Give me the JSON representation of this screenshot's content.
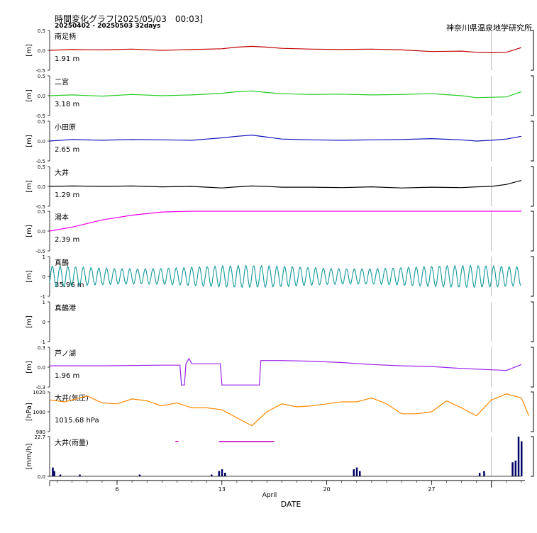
{
  "header": {
    "title": "時間変化グラフ[2025/05/03　00:03]",
    "subtitle": "20250402 - 20250503 32days",
    "organization": "神奈川県温泉地学研究所"
  },
  "colors": {
    "odawara_minami": "#c00000",
    "ninomiya": "#22cc22",
    "odawara": "#1010c0",
    "oi": "#000000",
    "yumoto": "#ee00ee",
    "manazuru": "#119999",
    "ashinoko": "#9922ee",
    "pressure": "#ff8800",
    "rain": "#000066",
    "rain_flag": "#cc33cc"
  },
  "chart_data": {
    "type": "line",
    "x_axis": {
      "label": "DATE",
      "month_label": "April",
      "ticks": [
        "6",
        "13",
        "20",
        "27"
      ],
      "tick_days": [
        6,
        13,
        20,
        27
      ],
      "range": [
        1.5,
        33.0
      ],
      "marker_day": 31.0
    },
    "panels": [
      {
        "name": "南足柄",
        "unit": "[m]",
        "value_label": "1.91 m",
        "ylim": [
          -0.5,
          0.5
        ],
        "ytick_labels": [
          "0.5",
          "0.0",
          "-0.5"
        ],
        "color_key": "odawara_minami",
        "kind": "line",
        "series": [
          [
            1.5,
            0.0
          ],
          [
            3,
            0.02
          ],
          [
            5,
            0.01
          ],
          [
            7,
            0.03
          ],
          [
            9,
            0.0
          ],
          [
            11,
            0.02
          ],
          [
            13,
            0.04
          ],
          [
            14,
            0.08
          ],
          [
            15,
            0.1
          ],
          [
            16,
            0.08
          ],
          [
            17,
            0.05
          ],
          [
            19,
            0.03
          ],
          [
            21,
            0.02
          ],
          [
            23,
            0.03
          ],
          [
            25,
            0.01
          ],
          [
            27,
            -0.03
          ],
          [
            29,
            -0.02
          ],
          [
            30,
            -0.05
          ],
          [
            31,
            -0.06
          ],
          [
            32,
            -0.05
          ],
          [
            33,
            0.07
          ]
        ]
      },
      {
        "name": "二宮",
        "unit": "[m]",
        "value_label": "3.18 m",
        "ylim": [
          -0.5,
          0.5
        ],
        "ytick_labels": [
          "0.5",
          "0.0",
          "-0.5"
        ],
        "color_key": "ninomiya",
        "kind": "line",
        "series": [
          [
            1.5,
            0.0
          ],
          [
            3,
            0.02
          ],
          [
            5,
            -0.01
          ],
          [
            7,
            0.03
          ],
          [
            9,
            0.0
          ],
          [
            11,
            0.02
          ],
          [
            13,
            0.06
          ],
          [
            14,
            0.1
          ],
          [
            15,
            0.12
          ],
          [
            16,
            0.08
          ],
          [
            17,
            0.05
          ],
          [
            19,
            0.03
          ],
          [
            21,
            0.04
          ],
          [
            23,
            0.02
          ],
          [
            25,
            0.03
          ],
          [
            27,
            0.05
          ],
          [
            29,
            0.0
          ],
          [
            30,
            -0.05
          ],
          [
            31,
            -0.04
          ],
          [
            32,
            -0.03
          ],
          [
            33,
            0.1
          ]
        ]
      },
      {
        "name": "小田原",
        "unit": "[m]",
        "value_label": "2.65 m",
        "ylim": [
          -0.5,
          0.5
        ],
        "ytick_labels": [
          "0.5",
          "0.0",
          "-0.5"
        ],
        "color_key": "odawara",
        "kind": "line",
        "series": [
          [
            1.5,
            0.0
          ],
          [
            3,
            0.04
          ],
          [
            5,
            0.02
          ],
          [
            7,
            0.04
          ],
          [
            9,
            0.03
          ],
          [
            11,
            0.02
          ],
          [
            12,
            0.05
          ],
          [
            13,
            0.08
          ],
          [
            14,
            0.12
          ],
          [
            15,
            0.15
          ],
          [
            16,
            0.1
          ],
          [
            17,
            0.05
          ],
          [
            19,
            0.03
          ],
          [
            21,
            0.02
          ],
          [
            23,
            0.03
          ],
          [
            25,
            0.04
          ],
          [
            27,
            0.06
          ],
          [
            29,
            0.03
          ],
          [
            30,
            0.0
          ],
          [
            31,
            0.02
          ],
          [
            32,
            0.05
          ],
          [
            33,
            0.12
          ]
        ]
      },
      {
        "name": "大井",
        "unit": "[m]",
        "value_label": "1.29 m",
        "ylim": [
          -0.5,
          0.5
        ],
        "ytick_labels": [
          "0.5",
          "0.0",
          "-0.5"
        ],
        "color_key": "oi",
        "kind": "line",
        "series": [
          [
            1.5,
            0.0
          ],
          [
            3,
            0.01
          ],
          [
            5,
            0.0
          ],
          [
            7,
            0.01
          ],
          [
            9,
            -0.01
          ],
          [
            11,
            0.0
          ],
          [
            12,
            -0.02
          ],
          [
            13,
            -0.04
          ],
          [
            14,
            -0.01
          ],
          [
            15,
            0.01
          ],
          [
            16,
            0.0
          ],
          [
            17,
            -0.02
          ],
          [
            19,
            -0.02
          ],
          [
            21,
            -0.03
          ],
          [
            23,
            -0.01
          ],
          [
            25,
            -0.04
          ],
          [
            27,
            -0.02
          ],
          [
            29,
            -0.03
          ],
          [
            30,
            -0.01
          ],
          [
            31,
            0.0
          ],
          [
            32,
            0.05
          ],
          [
            33,
            0.15
          ]
        ]
      },
      {
        "name": "湯本",
        "unit": "[m]",
        "value_label": "2.39 m",
        "ylim": [
          -0.5,
          0.5
        ],
        "ytick_labels": [
          "0.5",
          "0.0",
          "-0.5"
        ],
        "color_key": "yumoto",
        "kind": "line",
        "series": [
          [
            1.5,
            0.0
          ],
          [
            3,
            0.1
          ],
          [
            5,
            0.28
          ],
          [
            7,
            0.4
          ],
          [
            9,
            0.48
          ],
          [
            11,
            0.5
          ],
          [
            13,
            0.52
          ],
          [
            15,
            0.62
          ],
          [
            17,
            0.7
          ],
          [
            19,
            0.7
          ],
          [
            21,
            0.71
          ],
          [
            23,
            0.72
          ],
          [
            25,
            0.73
          ],
          [
            27,
            0.72
          ],
          [
            29,
            0.7
          ],
          [
            31,
            0.68
          ],
          [
            32,
            0.6
          ],
          [
            33,
            0.58
          ]
        ]
      },
      {
        "name": "真鶴",
        "unit": "[m]",
        "value_label": "35.96 m",
        "ylim": [
          -1,
          1
        ],
        "ytick_labels": [
          "1",
          "0",
          "-1"
        ],
        "color_key": "manazuru",
        "kind": "tide",
        "series": []
      },
      {
        "name": "真鶴港",
        "unit": "[m]",
        "value_label": "",
        "ylim": [
          -1,
          1
        ],
        "ytick_labels": [
          "1",
          "0",
          "-1"
        ],
        "color_key": "manazuru",
        "kind": "empty",
        "series": []
      },
      {
        "name": "芦ノ湖",
        "unit": "[m]",
        "value_label": "1.96 m",
        "ylim": [
          -0.3,
          0.3
        ],
        "ytick_labels": [
          "0.3",
          "0.0",
          "-0.3"
        ],
        "color_key": "ashinoko",
        "kind": "line",
        "series": [
          [
            1.5,
            0.02
          ],
          [
            5,
            0.02
          ],
          [
            9,
            0.03
          ],
          [
            10.2,
            0.03
          ],
          [
            10.3,
            -0.27
          ],
          [
            10.5,
            -0.27
          ],
          [
            10.6,
            0.05
          ],
          [
            10.8,
            0.13
          ],
          [
            11,
            0.05
          ],
          [
            12.9,
            0.05
          ],
          [
            13,
            -0.27
          ],
          [
            15.5,
            -0.27
          ],
          [
            15.6,
            0.1
          ],
          [
            17,
            0.1
          ],
          [
            19,
            0.09
          ],
          [
            21,
            0.07
          ],
          [
            23,
            0.04
          ],
          [
            25,
            0.02
          ],
          [
            27,
            0.01
          ],
          [
            29,
            -0.02
          ],
          [
            31,
            -0.04
          ],
          [
            32,
            -0.05
          ],
          [
            33,
            0.04
          ]
        ]
      },
      {
        "name": "大井(気圧)",
        "unit": "[hPa]",
        "value_label": "1015.68 hPa",
        "ylim": [
          980,
          1020
        ],
        "ytick_labels": [
          "1020",
          "1000",
          "980"
        ],
        "color_key": "pressure",
        "kind": "line",
        "series": [
          [
            1.5,
            1012
          ],
          [
            2.5,
            1010
          ],
          [
            4,
            1016
          ],
          [
            5,
            1009
          ],
          [
            6,
            1008
          ],
          [
            7,
            1013
          ],
          [
            8,
            1011
          ],
          [
            9,
            1006
          ],
          [
            10,
            1009
          ],
          [
            11,
            1004
          ],
          [
            12,
            1004
          ],
          [
            13,
            1002
          ],
          [
            14,
            994
          ],
          [
            15,
            986
          ],
          [
            16,
            1000
          ],
          [
            17,
            1008
          ],
          [
            18,
            1005
          ],
          [
            19,
            1006
          ],
          [
            20,
            1008
          ],
          [
            21,
            1010
          ],
          [
            22,
            1010
          ],
          [
            23,
            1014
          ],
          [
            24,
            1008
          ],
          [
            25,
            998
          ],
          [
            26,
            998
          ],
          [
            27,
            1000
          ],
          [
            28,
            1011
          ],
          [
            29,
            1004
          ],
          [
            30,
            996
          ],
          [
            31,
            1012
          ],
          [
            32,
            1018
          ],
          [
            33,
            1014
          ],
          [
            33.5,
            996
          ]
        ]
      },
      {
        "name": "大井(雨量)",
        "unit": "[mm/h]",
        "value_label": "",
        "ylim": [
          0,
          22.7
        ],
        "ytick_labels": [
          "22.7",
          "0.0"
        ],
        "color_key": "rain",
        "kind": "bar",
        "series": [
          [
            1.7,
            5
          ],
          [
            1.8,
            3
          ],
          [
            2.2,
            1
          ],
          [
            3.5,
            1
          ],
          [
            7.5,
            1
          ],
          [
            12.3,
            1
          ],
          [
            12.8,
            3
          ],
          [
            13.0,
            4
          ],
          [
            13.2,
            2
          ],
          [
            21.8,
            4
          ],
          [
            22.0,
            5
          ],
          [
            22.2,
            3
          ],
          [
            30.2,
            2
          ],
          [
            30.5,
            3
          ],
          [
            32.4,
            8
          ],
          [
            32.6,
            9
          ],
          [
            32.8,
            25
          ],
          [
            33.0,
            20
          ]
        ],
        "flag_ranges": [
          [
            9.9,
            10.1
          ],
          [
            12.8,
            16.5
          ]
        ]
      }
    ]
  }
}
